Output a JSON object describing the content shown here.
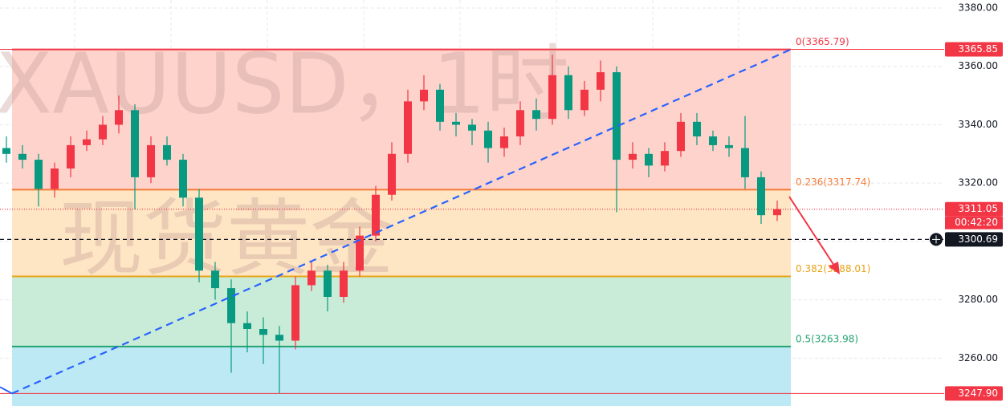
{
  "chart_data": {
    "type": "candlestick",
    "title": "XAUUSD，1时",
    "subtitle": "现货黄金",
    "up_color": "#f23645",
    "down_color": "#089981",
    "open": [
      3332,
      3330,
      3328,
      3318,
      3325,
      3333,
      3335,
      3340,
      3345,
      3322,
      3333,
      3328,
      3315,
      3290,
      3284,
      3272,
      3270,
      3268,
      3266,
      3285,
      3290,
      3281,
      3290,
      3302,
      3316,
      3330,
      3348,
      3352,
      3341,
      3340,
      3338,
      3332,
      3336,
      3345,
      3342,
      3357,
      3345,
      3352,
      3358,
      3328,
      3330,
      3326,
      3331,
      3341,
      3336,
      3333,
      3332,
      3322,
      3309
    ],
    "high": [
      3336,
      3333,
      3330,
      3327,
      3336,
      3338,
      3343,
      3350,
      3347,
      3336,
      3336,
      3330,
      3318,
      3293,
      3287,
      3276,
      3274,
      3271,
      3288,
      3293,
      3292,
      3293,
      3305,
      3319,
      3334,
      3352,
      3357,
      3354,
      3344,
      3342,
      3341,
      3339,
      3348,
      3349,
      3364,
      3360,
      3355,
      3362,
      3360,
      3334,
      3332,
      3334,
      3344,
      3344,
      3338,
      3336,
      3343,
      3324,
      3314
    ],
    "low": [
      3327,
      3325,
      3312,
      3315,
      3322,
      3331,
      3333,
      3337,
      3311,
      3320,
      3326,
      3312,
      3286,
      3280,
      3255,
      3262,
      3258,
      3248,
      3263,
      3283,
      3276,
      3279,
      3288,
      3300,
      3314,
      3327,
      3345,
      3338,
      3336,
      3333,
      3327,
      3329,
      3333,
      3338,
      3340,
      3342,
      3343,
      3348,
      3310,
      3325,
      3322,
      3324,
      3329,
      3333,
      3331,
      3329,
      3318,
      3306,
      3307
    ],
    "close": [
      3330,
      3328,
      3318,
      3325,
      3333,
      3335,
      3340,
      3345,
      3322,
      3333,
      3328,
      3315,
      3290,
      3284,
      3272,
      3270,
      3268,
      3266,
      3285,
      3290,
      3281,
      3290,
      3302,
      3316,
      3330,
      3348,
      3352,
      3341,
      3340,
      3338,
      3332,
      3336,
      3345,
      3342,
      3357,
      3345,
      3352,
      3358,
      3328,
      3330,
      3326,
      3331,
      3341,
      3336,
      3333,
      3332,
      3322,
      3309,
      3311.05
    ],
    "ylim": [
      3243.6,
      3382.75
    ],
    "yticks": [
      {
        "value": 3260,
        "label": "3260.00"
      },
      {
        "value": 3280,
        "label": "3280.00"
      },
      {
        "value": 3300,
        "label": "3300.00"
      },
      {
        "value": 3320,
        "label": "3320.00"
      },
      {
        "value": 3340,
        "label": "3340.00"
      },
      {
        "value": 3360,
        "label": "3360.00"
      },
      {
        "value": 3380,
        "label": "3380.00"
      }
    ],
    "grid": true,
    "fib_levels": [
      {
        "value": 3365.79,
        "label": "0(3365.79)",
        "color": "#f23645",
        "fill": "#fdd3cb"
      },
      {
        "value": 3317.74,
        "label": "0.236(3317.74)",
        "color": "#f57c3a",
        "fill": "#fee6c4"
      },
      {
        "value": 3288.01,
        "label": "0.382(3288.01)",
        "color": "#e8a317",
        "fill": "#c9ecd9"
      },
      {
        "value": 3263.98,
        "label": "0.5(3263.98)",
        "color": "#22a36f",
        "fill": "#bde9f5"
      }
    ],
    "price_lines": [
      {
        "value": 3365.85,
        "label": "3365.85",
        "color": "#f23645",
        "style": "solid"
      },
      {
        "value": 3311.05,
        "label": "3311.05",
        "color": "#f23645",
        "style": "dotted",
        "countdown": "00:42:20"
      },
      {
        "value": 3300.69,
        "label": "3300.69",
        "color": "#131722",
        "style": "dashed"
      },
      {
        "value": 3247.9,
        "label": "3247.90",
        "color": "#f23645",
        "style": "solid"
      }
    ],
    "trend_line": {
      "from": 3247.9,
      "to": 3365.79,
      "color": "#2962ff"
    }
  }
}
